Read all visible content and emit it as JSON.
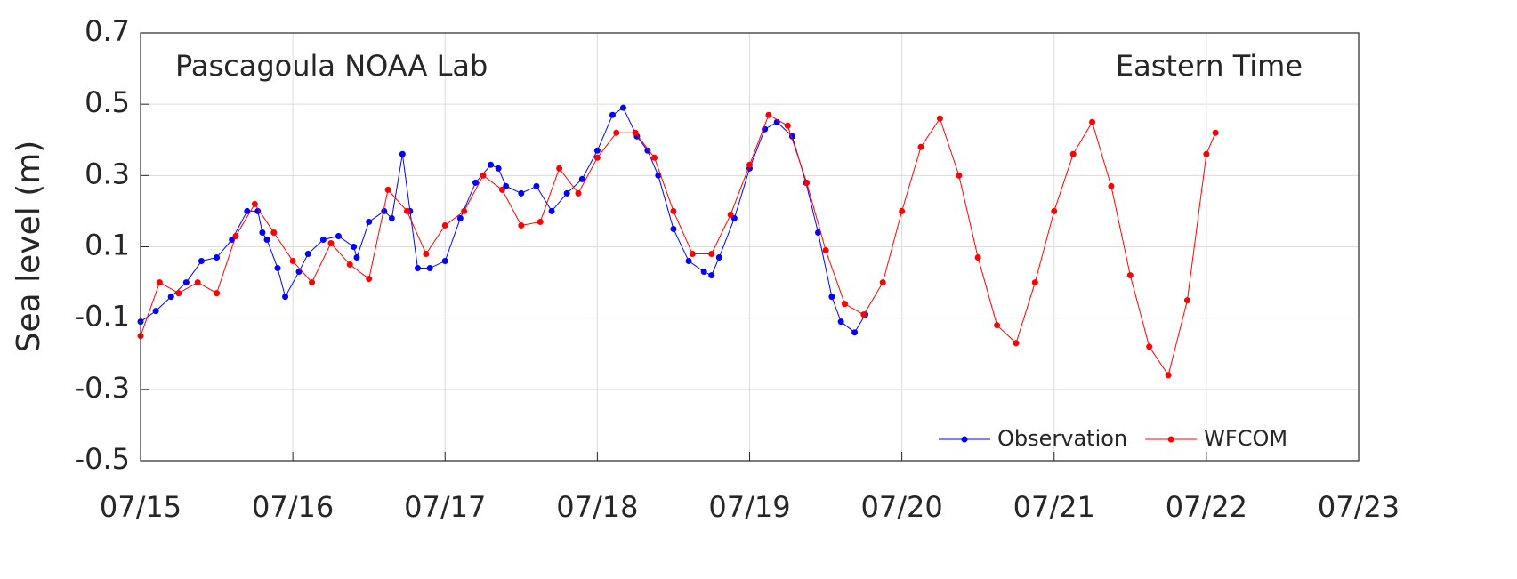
{
  "chart_data": {
    "type": "line",
    "ylabel": "Sea level (m)",
    "annotations": [
      "Pascagoula NOAA Lab",
      "Eastern Time"
    ],
    "legend": "lower right",
    "grid": true,
    "xlim": [
      0,
      8
    ],
    "xticks": [
      {
        "value": 0,
        "label": "07/15"
      },
      {
        "value": 1,
        "label": "07/16"
      },
      {
        "value": 2,
        "label": "07/17"
      },
      {
        "value": 3,
        "label": "07/18"
      },
      {
        "value": 4,
        "label": "07/19"
      },
      {
        "value": 5,
        "label": "07/20"
      },
      {
        "value": 6,
        "label": "07/21"
      },
      {
        "value": 7,
        "label": "07/22"
      },
      {
        "value": 8,
        "label": "07/23"
      }
    ],
    "ylim": [
      -0.5,
      0.7
    ],
    "yticks": [
      -0.5,
      -0.3,
      -0.1,
      0.1,
      0.3,
      0.5,
      0.7
    ],
    "series": [
      {
        "name": "Observation",
        "color": "#0000ff",
        "x": [
          0,
          0.1,
          0.2,
          0.3,
          0.4,
          0.5,
          0.6,
          0.7,
          0.77,
          0.8,
          0.83,
          0.9,
          0.95,
          1.04,
          1.1,
          1.2,
          1.3,
          1.4,
          1.42,
          1.5,
          1.6,
          1.65,
          1.72,
          1.77,
          1.82,
          1.9,
          2.0,
          2.1,
          2.2,
          2.3,
          2.35,
          2.4,
          2.5,
          2.6,
          2.7,
          2.8,
          2.9,
          3.0,
          3.1,
          3.17,
          3.26,
          3.33,
          3.4,
          3.5,
          3.6,
          3.7,
          3.75,
          3.8,
          3.9,
          4.0,
          4.1,
          4.18,
          4.28,
          4.37,
          4.45,
          4.54,
          4.6,
          4.69,
          4.76
        ],
        "values": [
          -0.11,
          -0.08,
          -0.04,
          0.0,
          0.06,
          0.07,
          0.12,
          0.2,
          0.2,
          0.14,
          0.12,
          0.04,
          -0.04,
          0.03,
          0.08,
          0.12,
          0.13,
          0.1,
          0.07,
          0.17,
          0.2,
          0.18,
          0.36,
          0.2,
          0.04,
          0.04,
          0.06,
          0.18,
          0.28,
          0.33,
          0.32,
          0.27,
          0.25,
          0.27,
          0.2,
          0.25,
          0.29,
          0.37,
          0.47,
          0.49,
          0.41,
          0.37,
          0.3,
          0.15,
          0.06,
          0.03,
          0.02,
          0.07,
          0.18,
          0.32,
          0.43,
          0.45,
          0.41,
          0.28,
          0.14,
          -0.04,
          -0.11,
          -0.14,
          -0.09
        ]
      },
      {
        "name": "WFCOM",
        "color": "#ff0000",
        "x": [
          0,
          0.125,
          0.25,
          0.375,
          0.5,
          0.625,
          0.75,
          0.875,
          1.0,
          1.125,
          1.25,
          1.375,
          1.5,
          1.625,
          1.75,
          1.875,
          2.0,
          2.125,
          2.25,
          2.375,
          2.5,
          2.625,
          2.75,
          2.875,
          3.0,
          3.125,
          3.25,
          3.375,
          3.5,
          3.625,
          3.75,
          3.875,
          4.0,
          4.125,
          4.25,
          4.375,
          4.5,
          4.625,
          4.75,
          4.875,
          5.0,
          5.125,
          5.25,
          5.375,
          5.5,
          5.625,
          5.75,
          5.875,
          6.0,
          6.125,
          6.25,
          6.375,
          6.5,
          6.625,
          6.75,
          6.875,
          7.0,
          7.06
        ],
        "values": [
          -0.15,
          0.0,
          -0.03,
          0.0,
          -0.03,
          0.13,
          0.22,
          0.14,
          0.06,
          0.0,
          0.11,
          0.05,
          0.01,
          0.26,
          0.2,
          0.08,
          0.16,
          0.2,
          0.3,
          0.26,
          0.16,
          0.17,
          0.32,
          0.25,
          0.35,
          0.42,
          0.42,
          0.35,
          0.2,
          0.08,
          0.08,
          0.19,
          0.33,
          0.47,
          0.44,
          0.28,
          0.09,
          -0.06,
          -0.09,
          0.0,
          0.2,
          0.38,
          0.46,
          0.3,
          0.07,
          -0.12,
          -0.17,
          0.0,
          0.2,
          0.36,
          0.45,
          0.27,
          0.02,
          -0.18,
          -0.26,
          -0.05,
          0.36,
          0.42
        ]
      }
    ]
  }
}
